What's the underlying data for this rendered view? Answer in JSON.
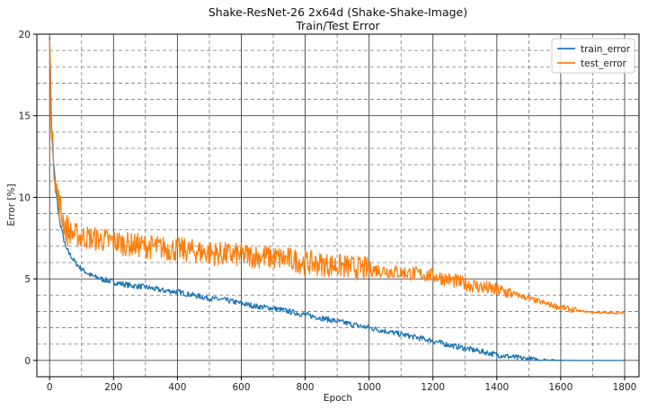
{
  "chart_data": {
    "type": "line",
    "title": "Shake-ResNet-26 2x64d (Shake-Shake-Image)",
    "subtitle": "Train/Test Error",
    "xlabel": "Epoch",
    "ylabel": "Error [%]",
    "xlim": [
      -40,
      1845
    ],
    "ylim": [
      -1,
      20
    ],
    "x_ticks": [
      0,
      200,
      400,
      600,
      800,
      1000,
      1200,
      1400,
      1600,
      1800
    ],
    "y_ticks": [
      0,
      5,
      10,
      15,
      20
    ],
    "grid": "major solid, minor dashed",
    "legend_position": "top-right",
    "series": [
      {
        "name": "train_error",
        "color": "#1f77b4",
        "x": [
          0,
          3,
          6,
          10,
          15,
          20,
          25,
          30,
          40,
          50,
          60,
          80,
          100,
          130,
          160,
          200,
          250,
          300,
          350,
          400,
          450,
          500,
          550,
          600,
          650,
          700,
          750,
          800,
          850,
          900,
          950,
          1000,
          1050,
          1100,
          1150,
          1200,
          1250,
          1300,
          1350,
          1400,
          1450,
          1500,
          1550,
          1600,
          1650,
          1700,
          1750,
          1800
        ],
        "values": [
          20,
          17,
          14.5,
          12.8,
          11.5,
          10.4,
          9.5,
          8.7,
          7.8,
          6.9,
          6.6,
          6.0,
          5.6,
          5.2,
          5.0,
          4.8,
          4.6,
          4.5,
          4.3,
          4.2,
          4.0,
          3.8,
          3.7,
          3.5,
          3.3,
          3.2,
          3.0,
          2.8,
          2.6,
          2.4,
          2.2,
          2.0,
          1.8,
          1.6,
          1.4,
          1.2,
          0.95,
          0.75,
          0.55,
          0.35,
          0.2,
          0.08,
          0.03,
          0.01,
          0.0,
          0.0,
          0.0,
          0.0
        ]
      },
      {
        "name": "test_error",
        "color": "#ff7f0e",
        "x": [
          0,
          3,
          6,
          10,
          15,
          20,
          25,
          30,
          40,
          50,
          60,
          80,
          100,
          130,
          160,
          200,
          250,
          300,
          350,
          400,
          450,
          500,
          550,
          600,
          650,
          700,
          750,
          800,
          850,
          900,
          950,
          1000,
          1050,
          1100,
          1150,
          1200,
          1250,
          1300,
          1350,
          1400,
          1450,
          1500,
          1550,
          1600,
          1650,
          1700,
          1750,
          1800
        ],
        "values": [
          20,
          16.5,
          14.5,
          13.0,
          11.8,
          10.8,
          10.0,
          9.6,
          8.8,
          8.1,
          7.9,
          7.7,
          7.6,
          7.5,
          7.4,
          7.3,
          7.1,
          7.0,
          6.9,
          6.8,
          6.7,
          6.6,
          6.5,
          6.45,
          6.4,
          6.3,
          6.2,
          6.0,
          5.9,
          5.8,
          5.7,
          5.6,
          5.5,
          5.4,
          5.3,
          5.2,
          4.95,
          4.7,
          4.5,
          4.3,
          4.1,
          3.8,
          3.5,
          3.25,
          3.05,
          2.95,
          2.9,
          2.9
        ]
      }
    ]
  }
}
